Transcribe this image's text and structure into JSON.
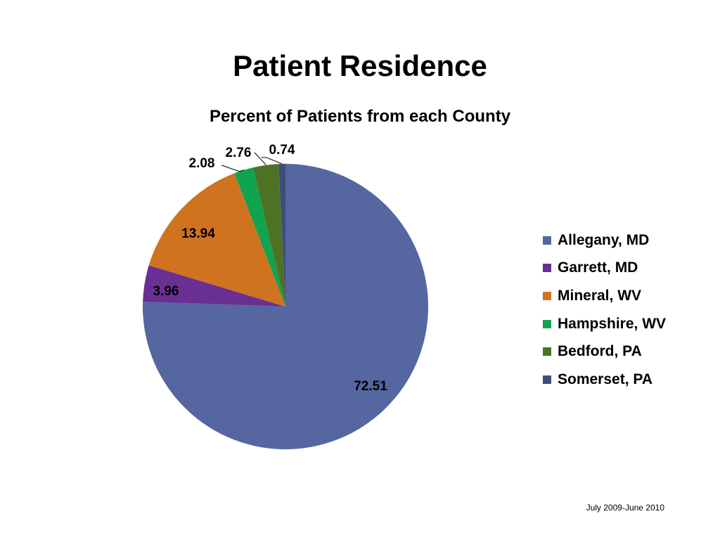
{
  "slide": {
    "title": "Patient Residence",
    "footnote": "July 2009-June 2010"
  },
  "chart_data": {
    "type": "pie",
    "title": "Percent of Patients from each County",
    "legend_position": "right",
    "start_angle_deg": 0,
    "direction": "clockwise",
    "slices": [
      {
        "label": "Allegany, MD",
        "value": 72.51,
        "display": "72.51",
        "color": "#5566A0"
      },
      {
        "label": "Garrett, MD",
        "value": 3.96,
        "display": "3.96",
        "color": "#6A2F93"
      },
      {
        "label": "Mineral, WV",
        "value": 13.94,
        "display": "13.94",
        "color": "#CF731F"
      },
      {
        "label": "Hampshire, WV",
        "value": 2.08,
        "display": "2.08",
        "color": "#10A350"
      },
      {
        "label": "Bedford, PA",
        "value": 2.76,
        "display": "2.76",
        "color": "#4E7224"
      },
      {
        "label": "Somerset, PA",
        "value": 0.74,
        "display": "0.74",
        "color": "#3E4E7A"
      }
    ]
  }
}
